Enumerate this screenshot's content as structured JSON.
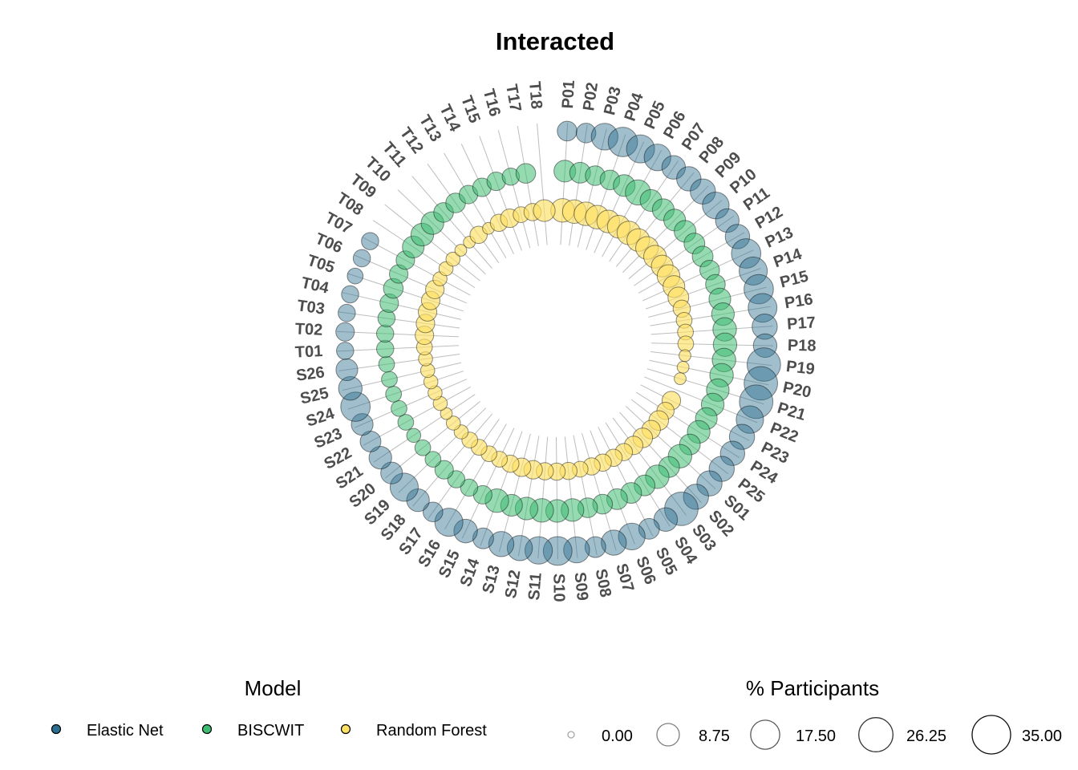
{
  "chart_data": {
    "type": "scatter",
    "title": "Interacted",
    "categories": [
      "P01",
      "P02",
      "P03",
      "P04",
      "P05",
      "P06",
      "P07",
      "P08",
      "P09",
      "P10",
      "P11",
      "P12",
      "P13",
      "P14",
      "P15",
      "P16",
      "P17",
      "P18",
      "P19",
      "P20",
      "P21",
      "P22",
      "P23",
      "P24",
      "P25",
      "S01",
      "S02",
      "S03",
      "S04",
      "S05",
      "S06",
      "S07",
      "S08",
      "S09",
      "S10",
      "S11",
      "S12",
      "S13",
      "S14",
      "S15",
      "S16",
      "S17",
      "S18",
      "S19",
      "S20",
      "S21",
      "S22",
      "S23",
      "S24",
      "S25",
      "S26",
      "T01",
      "T02",
      "T03",
      "T04",
      "T05",
      "T06",
      "T07",
      "T08",
      "T09",
      "T10",
      "T11",
      "T12",
      "T13",
      "T14",
      "T15",
      "T16",
      "T17",
      "T18"
    ],
    "series": [
      {
        "name": "Elastic Net",
        "color": "#2c6e8f",
        "values": [
          6,
          6,
          14,
          18,
          16,
          14,
          10,
          11,
          12,
          14,
          10,
          11,
          18,
          16,
          18,
          17,
          12,
          10,
          25,
          25,
          25,
          15,
          12,
          11,
          12,
          12,
          12,
          25,
          10,
          7,
          14,
          12,
          7,
          13,
          17,
          15,
          12,
          12,
          7,
          10,
          16,
          6,
          9,
          16,
          8,
          9,
          7,
          8,
          18,
          10,
          8,
          4,
          5,
          4,
          4,
          3,
          4,
          4,
          0,
          0,
          0,
          0,
          0,
          0,
          0,
          0,
          0,
          0,
          0
        ]
      },
      {
        "name": "BISCWIT",
        "color": "#3fbc73",
        "values": [
          8,
          7,
          6,
          6,
          8,
          12,
          8,
          8,
          8,
          8,
          7,
          7,
          6,
          6,
          8,
          9,
          10,
          10,
          10,
          10,
          9,
          9,
          8,
          9,
          7,
          10,
          7,
          10,
          7,
          7,
          7,
          6,
          6,
          9,
          9,
          10,
          9,
          8,
          10,
          5,
          4,
          4,
          5,
          3,
          3,
          2,
          3,
          3,
          3,
          3,
          3,
          4,
          4,
          4,
          5,
          6,
          5,
          5,
          8,
          9,
          9,
          6,
          6,
          5,
          5,
          5,
          4,
          6,
          0
        ]
      },
      {
        "name": "Random Forest",
        "color": "#fde064",
        "values": [
          10,
          10,
          10,
          10,
          9,
          9,
          10,
          9,
          9,
          9,
          8,
          9,
          8,
          7,
          4,
          3,
          3,
          3,
          1,
          1,
          1,
          0,
          5,
          4,
          6,
          5,
          6,
          5,
          4,
          4,
          4,
          4,
          3,
          4,
          4,
          4,
          5,
          5,
          4,
          3,
          3,
          3,
          3,
          2,
          2,
          1,
          2,
          2,
          2,
          2,
          2,
          3,
          5,
          5,
          5,
          5,
          5,
          2,
          2,
          2,
          1,
          1,
          4,
          1,
          4,
          5,
          3,
          4,
          8
        ]
      }
    ],
    "legend": {
      "model_title": "Model",
      "model_items": [
        "Elastic Net",
        "BISCWIT",
        "Random Forest"
      ],
      "size_title": "% Participants",
      "size_values": [
        0.0,
        8.75,
        17.5,
        26.25,
        35.0
      ],
      "size_labels": [
        "0.00",
        "8.75",
        "17.50",
        "26.25",
        "35.00"
      ],
      "placement": "bottom"
    }
  }
}
